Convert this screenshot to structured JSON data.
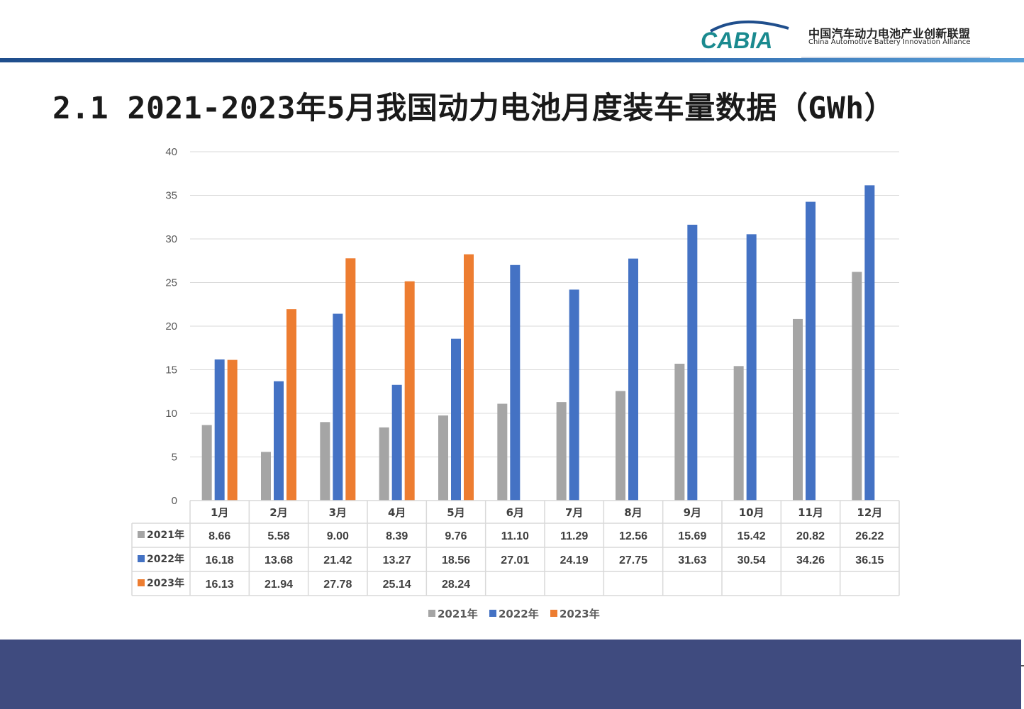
{
  "header": {
    "logo_text": "CABIA",
    "org_name_cn": "中国汽车动力电池产业创新联盟",
    "org_name_en": "China Automotive Battery Innovation Alliance"
  },
  "slide": {
    "title": "2.1 2021-2023年5月我国动力电池月度装车量数据（GWh）"
  },
  "chart_data": {
    "type": "bar",
    "title": "",
    "xlabel": "",
    "ylabel": "",
    "ylim": [
      0,
      40
    ],
    "yticks": [
      0,
      5,
      10,
      15,
      20,
      25,
      30,
      35,
      40
    ],
    "grid": true,
    "legend_position": "bottom",
    "categories": [
      "1月",
      "2月",
      "3月",
      "4月",
      "5月",
      "6月",
      "7月",
      "8月",
      "9月",
      "10月",
      "11月",
      "12月"
    ],
    "series": [
      {
        "name": "2021年",
        "color": "#a5a5a5",
        "values": [
          8.66,
          5.58,
          9.0,
          8.39,
          9.76,
          11.1,
          11.29,
          12.56,
          15.69,
          15.42,
          20.82,
          26.22
        ],
        "labels": [
          "8.66",
          "5.58",
          "9.00",
          "8.39",
          "9.76",
          "11.10",
          "11.29",
          "12.56",
          "15.69",
          "15.42",
          "20.82",
          "26.22"
        ]
      },
      {
        "name": "2022年",
        "color": "#4472c4",
        "values": [
          16.18,
          13.68,
          21.42,
          13.27,
          18.56,
          27.01,
          24.19,
          27.75,
          31.63,
          30.54,
          34.26,
          36.15
        ],
        "labels": [
          "16.18",
          "13.68",
          "21.42",
          "13.27",
          "18.56",
          "27.01",
          "24.19",
          "27.75",
          "31.63",
          "30.54",
          "34.26",
          "36.15"
        ]
      },
      {
        "name": "2023年",
        "color": "#ed7d31",
        "values": [
          16.13,
          21.94,
          27.78,
          25.14,
          28.24,
          null,
          null,
          null,
          null,
          null,
          null,
          null
        ],
        "labels": [
          "16.13",
          "21.94",
          "27.78",
          "25.14",
          "28.24",
          "",
          "",
          "",
          "",
          "",
          "",
          ""
        ]
      }
    ]
  },
  "colors": {
    "brand_blue": "#1f4e8c",
    "logo_teal": "#1a8a8f",
    "footer": "#3f4b7f"
  }
}
